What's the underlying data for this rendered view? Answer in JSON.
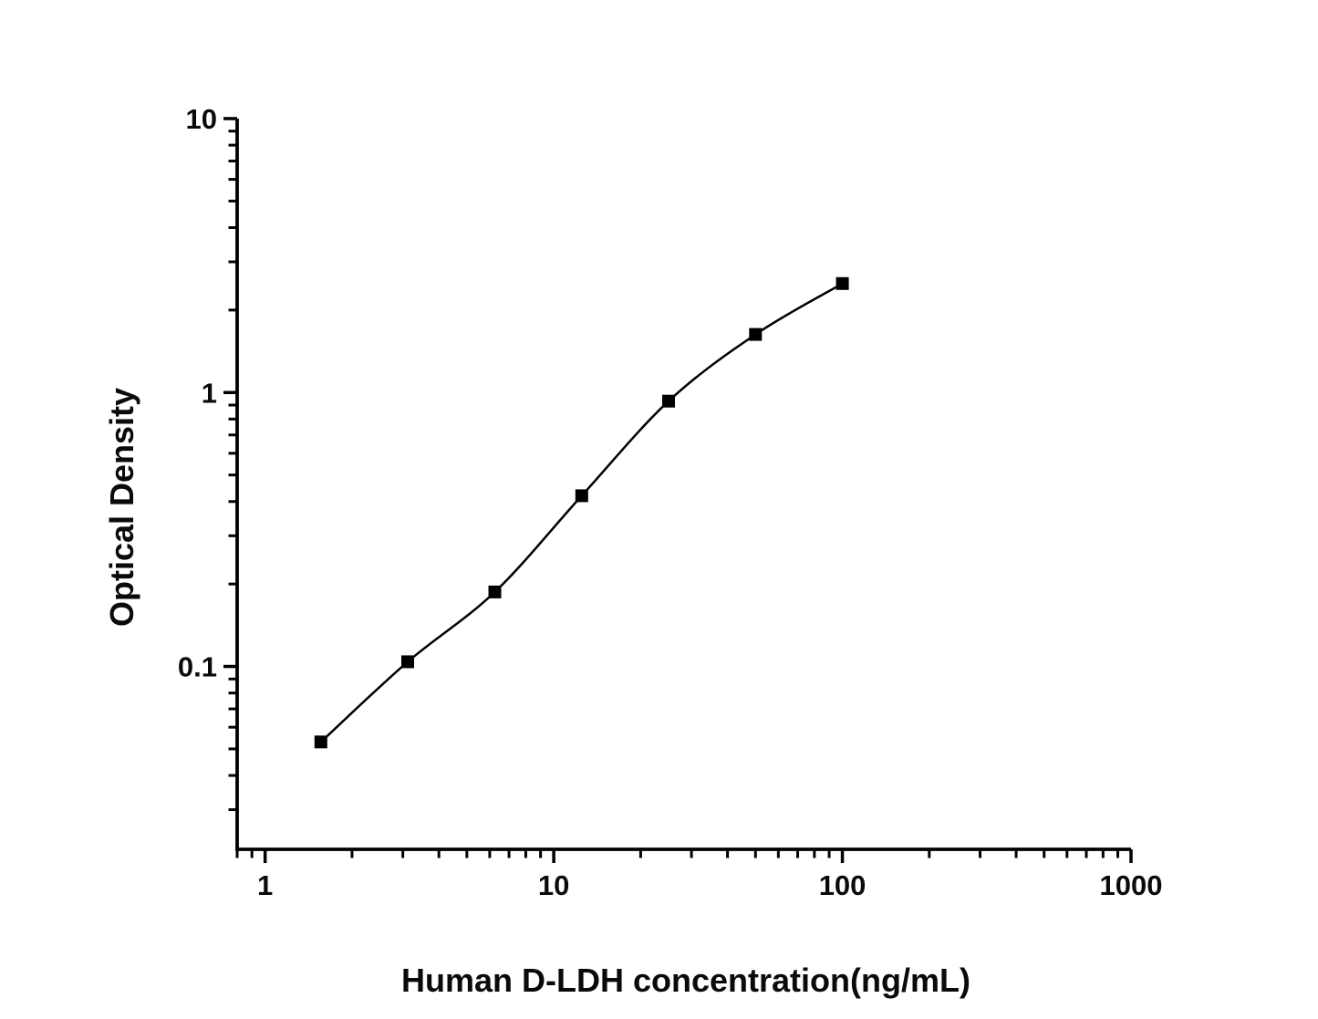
{
  "figure": {
    "background": "#ffffff",
    "foreground": "#000000"
  },
  "chart_data": {
    "type": "line",
    "subtype": "elisa-standard-curve-scatter-with-smooth-line",
    "title": "",
    "xlabel": "Human D-LDH concentration(ng/mL)",
    "ylabel": "Optical Density",
    "x_scale": "log10",
    "y_scale": "log10",
    "xlim": [
      0.8,
      1000
    ],
    "ylim": [
      0.0215,
      10
    ],
    "x_major_ticks": [
      1,
      10,
      100,
      1000
    ],
    "x_tick_labels": [
      "1",
      "10",
      "100",
      "1000"
    ],
    "y_major_ticks": [
      0.1,
      1,
      10
    ],
    "y_tick_labels": [
      "0.1",
      "1",
      "10"
    ],
    "grid": false,
    "legend": "none",
    "marker": "filled-square",
    "marker_size_px": 14,
    "line_color": "#000000",
    "marker_color": "#000000",
    "series": [
      {
        "x": [
          1.56,
          3.12,
          6.25,
          12.5,
          25,
          50,
          100
        ],
        "y": [
          0.053,
          0.104,
          0.187,
          0.42,
          0.93,
          1.63,
          2.5
        ]
      }
    ]
  }
}
